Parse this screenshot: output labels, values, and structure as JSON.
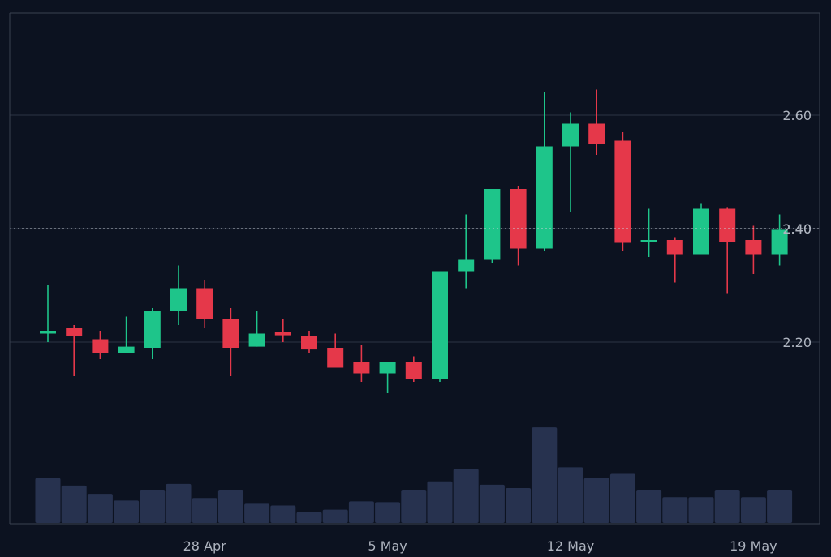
{
  "chart_data": {
    "type": "candlestick",
    "title": "",
    "xlabel": "",
    "ylabel": "",
    "grid": true,
    "ylim": [
      1.88,
      2.78
    ],
    "y_ticks": [
      2.2,
      2.4,
      2.6
    ],
    "y_tick_labels": [
      "2.20",
      "2.40",
      "2.60"
    ],
    "current_price": 2.4,
    "current_price_label": "2.40",
    "x_tick_labels": [
      "28 Apr",
      "5 May",
      "12 May",
      "19 May"
    ],
    "x_tick_dates": [
      "2025-04-28",
      "2025-05-05",
      "2025-05-12",
      "2025-05-19"
    ],
    "colors": {
      "up": "#1ec58a",
      "down": "#e5384a",
      "volume": "#27324f",
      "background": "#0c1220",
      "grid": "#2c3443",
      "axis_text": "#aeb4bf"
    },
    "candles": [
      {
        "date": "2025-04-22",
        "open": 2.215,
        "high": 2.3,
        "low": 2.2,
        "close": 2.22,
        "volume": 54
      },
      {
        "date": "2025-04-23",
        "open": 2.225,
        "high": 2.23,
        "low": 2.14,
        "close": 2.21,
        "volume": 45
      },
      {
        "date": "2025-04-24",
        "open": 2.205,
        "high": 2.22,
        "low": 2.17,
        "close": 2.18,
        "volume": 35
      },
      {
        "date": "2025-04-25",
        "open": 2.18,
        "high": 2.245,
        "low": 2.18,
        "close": 2.192,
        "volume": 27
      },
      {
        "date": "2025-04-26",
        "open": 2.19,
        "high": 2.26,
        "low": 2.17,
        "close": 2.255,
        "volume": 40
      },
      {
        "date": "2025-04-27",
        "open": 2.255,
        "high": 2.335,
        "low": 2.23,
        "close": 2.295,
        "volume": 47
      },
      {
        "date": "2025-04-28",
        "open": 2.295,
        "high": 2.31,
        "low": 2.225,
        "close": 2.24,
        "volume": 30
      },
      {
        "date": "2025-04-29",
        "open": 2.24,
        "high": 2.26,
        "low": 2.14,
        "close": 2.19,
        "volume": 40
      },
      {
        "date": "2025-04-30",
        "open": 2.192,
        "high": 2.255,
        "low": 2.192,
        "close": 2.215,
        "volume": 23
      },
      {
        "date": "2025-05-01",
        "open": 2.218,
        "high": 2.24,
        "low": 2.2,
        "close": 2.212,
        "volume": 21
      },
      {
        "date": "2025-05-02",
        "open": 2.21,
        "high": 2.22,
        "low": 2.18,
        "close": 2.187,
        "volume": 13
      },
      {
        "date": "2025-05-03",
        "open": 2.19,
        "high": 2.215,
        "low": 2.155,
        "close": 2.155,
        "volume": 16
      },
      {
        "date": "2025-05-04",
        "open": 2.165,
        "high": 2.195,
        "low": 2.13,
        "close": 2.145,
        "volume": 26
      },
      {
        "date": "2025-05-05",
        "open": 2.145,
        "high": 2.165,
        "low": 2.11,
        "close": 2.165,
        "volume": 25
      },
      {
        "date": "2025-05-06",
        "open": 2.165,
        "high": 2.175,
        "low": 2.13,
        "close": 2.135,
        "volume": 40
      },
      {
        "date": "2025-05-07",
        "open": 2.135,
        "high": 2.325,
        "low": 2.13,
        "close": 2.325,
        "volume": 50
      },
      {
        "date": "2025-05-08",
        "open": 2.325,
        "high": 2.425,
        "low": 2.295,
        "close": 2.345,
        "volume": 65
      },
      {
        "date": "2025-05-09",
        "open": 2.345,
        "high": 2.47,
        "low": 2.34,
        "close": 2.47,
        "volume": 46
      },
      {
        "date": "2025-05-10",
        "open": 2.47,
        "high": 2.475,
        "low": 2.335,
        "close": 2.365,
        "volume": 42
      },
      {
        "date": "2025-05-11",
        "open": 2.365,
        "high": 2.64,
        "low": 2.36,
        "close": 2.545,
        "volume": 115
      },
      {
        "date": "2025-05-12",
        "open": 2.545,
        "high": 2.605,
        "low": 2.43,
        "close": 2.585,
        "volume": 67
      },
      {
        "date": "2025-05-13",
        "open": 2.585,
        "high": 2.645,
        "low": 2.53,
        "close": 2.55,
        "volume": 54
      },
      {
        "date": "2025-05-14",
        "open": 2.555,
        "high": 2.57,
        "low": 2.36,
        "close": 2.375,
        "volume": 59
      },
      {
        "date": "2025-05-15",
        "open": 2.38,
        "high": 2.435,
        "low": 2.35,
        "close": 2.38,
        "volume": 40
      },
      {
        "date": "2025-05-16",
        "open": 2.38,
        "high": 2.385,
        "low": 2.305,
        "close": 2.355,
        "volume": 31
      },
      {
        "date": "2025-05-17",
        "open": 2.355,
        "high": 2.445,
        "low": 2.355,
        "close": 2.435,
        "volume": 31
      },
      {
        "date": "2025-05-18",
        "open": 2.435,
        "high": 2.438,
        "low": 2.285,
        "close": 2.377,
        "volume": 40
      },
      {
        "date": "2025-05-19",
        "open": 2.38,
        "high": 2.405,
        "low": 2.32,
        "close": 2.355,
        "volume": 31
      },
      {
        "date": "2025-05-20",
        "open": 2.355,
        "high": 2.425,
        "low": 2.335,
        "close": 2.398,
        "volume": 40
      }
    ]
  }
}
